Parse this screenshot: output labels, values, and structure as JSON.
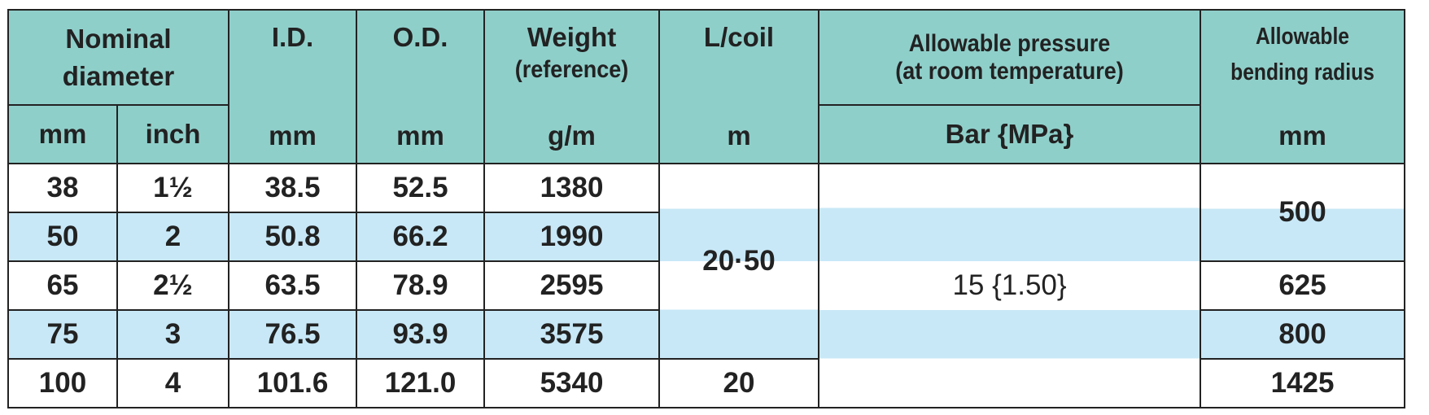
{
  "columns": [
    {
      "title": "Nominal diameter",
      "units": [
        "mm",
        "inch"
      ]
    },
    {
      "title": "I.D.",
      "unit": "mm"
    },
    {
      "title": "O.D.",
      "unit": "mm"
    },
    {
      "title": "Weight",
      "note": "(reference)",
      "unit": "g/m"
    },
    {
      "title": "L/coil",
      "unit": "m"
    },
    {
      "title": "Allowable pressure",
      "note": "(at room temperature)",
      "unit": "Bar {MPa}"
    },
    {
      "title": "Allowable bending radius",
      "unit": "mm"
    }
  ],
  "rows": [
    [
      "38",
      "1½",
      "38.5",
      "52.5",
      "1380",
      "20·50",
      "15 {1.50}",
      "500"
    ],
    [
      "50",
      "2",
      "50.8",
      "66.2",
      "1990"
    ],
    [
      "65",
      "2½",
      "63.5",
      "78.9",
      "2595",
      "625"
    ],
    [
      "75",
      "3",
      "76.5",
      "93.9",
      "3575",
      "800"
    ],
    [
      "100",
      "4",
      "101.6",
      "121.0",
      "5340",
      "20",
      "1425"
    ]
  ]
}
